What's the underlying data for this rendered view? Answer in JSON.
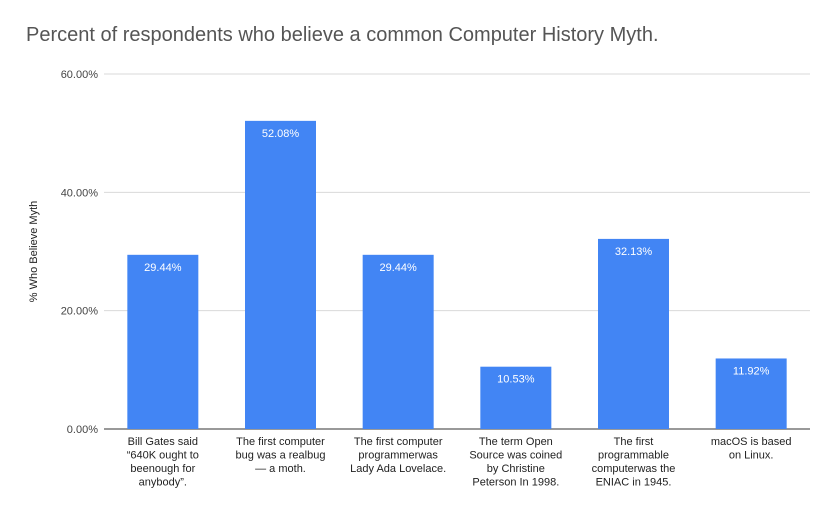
{
  "chart_data": {
    "type": "bar",
    "title": "Percent of respondents who believe a common Computer History Myth.",
    "xlabel": "",
    "ylabel": "% Who Believe Myth",
    "ylim": [
      0,
      60
    ],
    "yticks": [
      "0.00%",
      "20.00%",
      "40.00%",
      "60.00%"
    ],
    "grid": true,
    "legend": "none",
    "bar_color": "#4285f4",
    "categories": [
      [
        "Bill Gates said",
        "“640K ought to",
        "beenough for",
        "anybody”."
      ],
      [
        "The first computer",
        "bug was a realbug",
        "— a moth."
      ],
      [
        "The first computer",
        "programmerwas",
        "Lady Ada Lovelace."
      ],
      [
        "The term Open",
        "Source was coined",
        "by Christine",
        "Peterson In 1998."
      ],
      [
        "The first",
        "programmable",
        "computerwas the",
        "ENIAC in 1945."
      ],
      [
        "macOS is based",
        "on Linux."
      ]
    ],
    "values": [
      29.44,
      52.08,
      29.44,
      10.53,
      32.13,
      11.92
    ],
    "data_labels": [
      "29.44%",
      "52.08%",
      "29.44%",
      "10.53%",
      "32.13%",
      "11.92%"
    ]
  }
}
